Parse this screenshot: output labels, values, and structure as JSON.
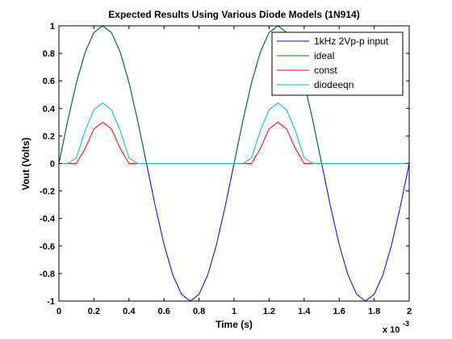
{
  "chart_data": {
    "type": "line",
    "title": "Expected Results Using Various Diode Models (1N914)",
    "xlabel": "Time (s)",
    "ylabel": "Vout (Volts)",
    "x_exponent_base": "x 10",
    "x_exponent_power": "-3",
    "xlim": [
      0,
      2
    ],
    "ylim": [
      -1,
      1
    ],
    "x_ticks": [
      "0",
      "0.2",
      "0.4",
      "0.6",
      "0.8",
      "1",
      "1.2",
      "1.4",
      "1.6",
      "1.8",
      "2"
    ],
    "y_ticks": [
      "-1",
      "-0.8",
      "-0.6",
      "-0.4",
      "-0.2",
      "0",
      "0.2",
      "0.4",
      "0.6",
      "0.8",
      "1"
    ],
    "grid": false,
    "legend_position": "top-right",
    "x": [
      0,
      0.05,
      0.1,
      0.15,
      0.2,
      0.25,
      0.3,
      0.35,
      0.4,
      0.45,
      0.5,
      0.55,
      0.6,
      0.65,
      0.7,
      0.75,
      0.8,
      0.85,
      0.9,
      0.95,
      1.0,
      1.05,
      1.1,
      1.15,
      1.2,
      1.25,
      1.3,
      1.35,
      1.4,
      1.45,
      1.5,
      1.55,
      1.6,
      1.65,
      1.7,
      1.75,
      1.8,
      1.85,
      1.9,
      1.95,
      2.0
    ],
    "series": [
      {
        "name": "1kHz 2Vp-p input",
        "color": "#0000ff",
        "values": [
          0,
          0.309,
          0.588,
          0.809,
          0.951,
          1.0,
          0.951,
          0.809,
          0.588,
          0.309,
          0,
          -0.309,
          -0.588,
          -0.809,
          -0.951,
          -1.0,
          -0.951,
          -0.809,
          -0.588,
          -0.309,
          0,
          0.309,
          0.588,
          0.809,
          0.951,
          1.0,
          0.951,
          0.809,
          0.588,
          0.309,
          0,
          -0.309,
          -0.588,
          -0.809,
          -0.951,
          -1.0,
          -0.951,
          -0.809,
          -0.588,
          -0.309,
          0
        ]
      },
      {
        "name": "ideal",
        "color": "#008000",
        "values": [
          0,
          0.309,
          0.588,
          0.809,
          0.951,
          1.0,
          0.951,
          0.809,
          0.588,
          0.309,
          0,
          0,
          0,
          0,
          0,
          0,
          0,
          0,
          0,
          0,
          0,
          0.309,
          0.588,
          0.809,
          0.951,
          1.0,
          0.951,
          0.809,
          0.588,
          0.309,
          0,
          0,
          0,
          0,
          0,
          0,
          0,
          0,
          0,
          0,
          0
        ]
      },
      {
        "name": "const",
        "color": "#ff0000",
        "values": [
          0,
          0,
          0,
          0.109,
          0.251,
          0.3,
          0.251,
          0.109,
          0,
          0,
          0,
          0,
          0,
          0,
          0,
          0,
          0,
          0,
          0,
          0,
          0,
          0,
          0,
          0.109,
          0.251,
          0.3,
          0.251,
          0.109,
          0,
          0,
          0,
          0,
          0,
          0,
          0,
          0,
          0,
          0,
          0,
          0,
          0
        ]
      },
      {
        "name": "diodeeqn",
        "color": "#00bfbf",
        "values": [
          0,
          0,
          0.04,
          0.24,
          0.39,
          0.44,
          0.39,
          0.24,
          0.04,
          0,
          0,
          0,
          0,
          0,
          0,
          0,
          0,
          0,
          0,
          0,
          0,
          0,
          0.04,
          0.24,
          0.39,
          0.44,
          0.39,
          0.24,
          0.04,
          0,
          0,
          0,
          0,
          0,
          0,
          0,
          0,
          0,
          0,
          0,
          0
        ]
      }
    ]
  }
}
